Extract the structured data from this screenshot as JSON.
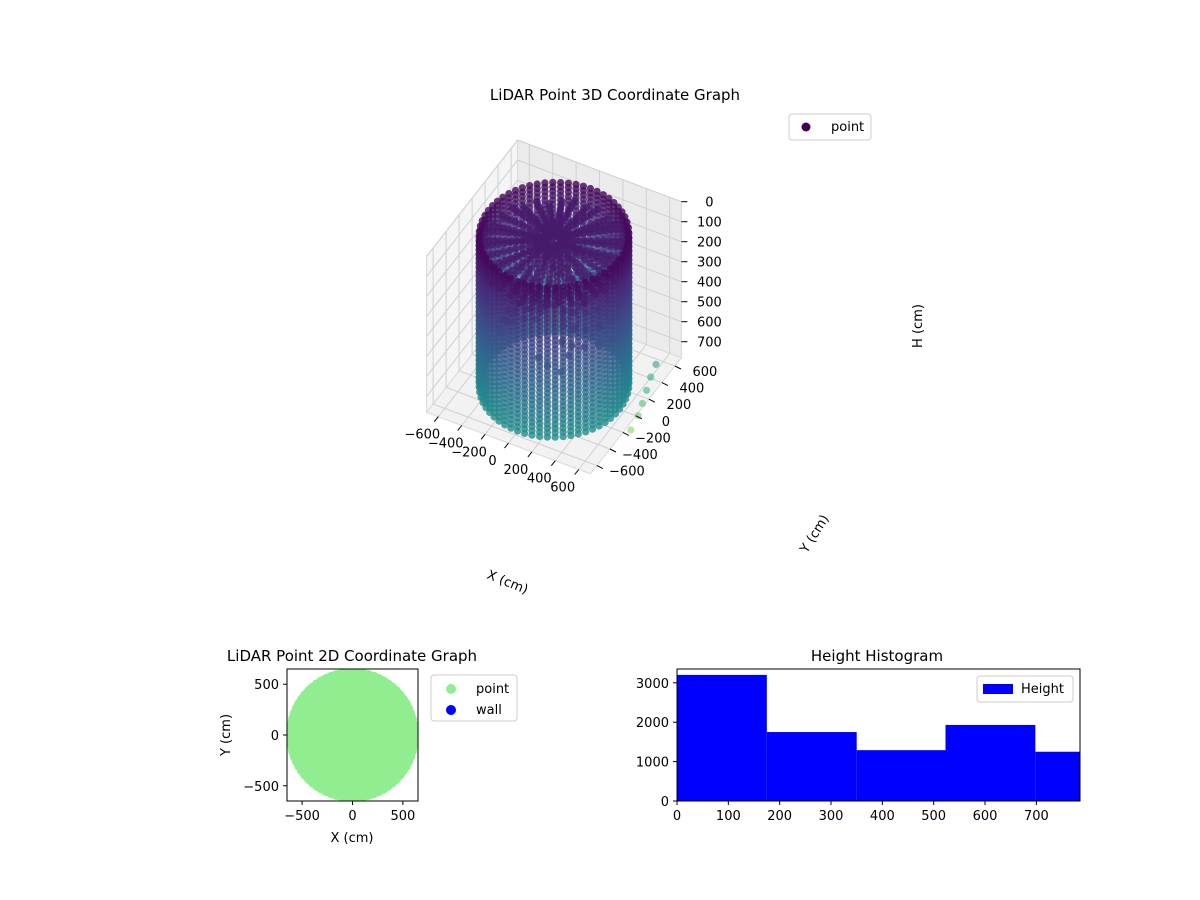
{
  "chart_data": [
    {
      "type": "scatter",
      "projection": "3d",
      "title": "LiDAR Point 3D Coordinate Graph",
      "xlabel": "X (cm)",
      "ylabel": "Y (cm)",
      "zlabel": "H (cm)",
      "xlim": [
        -700,
        700
      ],
      "ylim": [
        -700,
        700
      ],
      "zlim": [
        780,
        0
      ],
      "xticks": [
        -600,
        -400,
        -200,
        0,
        200,
        400,
        600
      ],
      "yticks": [
        -600,
        -400,
        -200,
        0,
        200,
        400,
        600
      ],
      "zticks": [
        0,
        100,
        200,
        300,
        400,
        500,
        600,
        700
      ],
      "legend": {
        "labels": [
          "point"
        ],
        "location": "top-right"
      },
      "colormap": "viridis",
      "marker_color": "#440154",
      "structure": {
        "outer_wall_radius_cm": 560,
        "height_range_cm": [
          0,
          780
        ],
        "columns": 60,
        "notes": "points sampled around a cylindrical wall, plus a few outlier points near X≈650"
      },
      "outliers": [
        {
          "x": 650,
          "y": 400,
          "h": 700
        },
        {
          "x": 660,
          "y": 300,
          "h": 720
        },
        {
          "x": 680,
          "y": 200,
          "h": 740
        },
        {
          "x": 700,
          "y": 100,
          "h": 760
        },
        {
          "x": 720,
          "y": 0,
          "h": 775
        },
        {
          "x": 740,
          "y": -150,
          "h": 780
        }
      ],
      "grid": true
    },
    {
      "type": "scatter",
      "title": "LiDAR Point 2D Coordinate Graph",
      "xlabel": "X (cm)",
      "ylabel": "Y (cm)",
      "xlim": [
        -650,
        650
      ],
      "ylim": [
        -650,
        650
      ],
      "xticks": [
        -500,
        0,
        500
      ],
      "yticks": [
        -500,
        0,
        500
      ],
      "series": [
        {
          "name": "point",
          "color": "#90ee90",
          "shape": "disk",
          "radius_cm": 600
        },
        {
          "name": "wall",
          "color": "#0000ff",
          "points": []
        }
      ],
      "legend": {
        "labels": [
          "point",
          "wall"
        ],
        "location": "outside-right"
      },
      "grid": false
    },
    {
      "type": "bar",
      "title": "Height Histogram",
      "xlabel": "",
      "ylabel": "",
      "bin_edges": [
        0,
        175,
        350,
        523,
        698,
        785
      ],
      "values": [
        3200,
        1750,
        1290,
        1930,
        1250
      ],
      "xlim": [
        0,
        785
      ],
      "ylim": [
        0,
        3350
      ],
      "xticks": [
        0,
        100,
        200,
        300,
        400,
        500,
        600,
        700
      ],
      "yticks": [
        0,
        1000,
        2000,
        3000
      ],
      "series": [
        {
          "name": "Height",
          "color": "#0000ff"
        }
      ],
      "legend": {
        "labels": [
          "Height"
        ],
        "location": "top-right"
      },
      "grid": false
    }
  ]
}
